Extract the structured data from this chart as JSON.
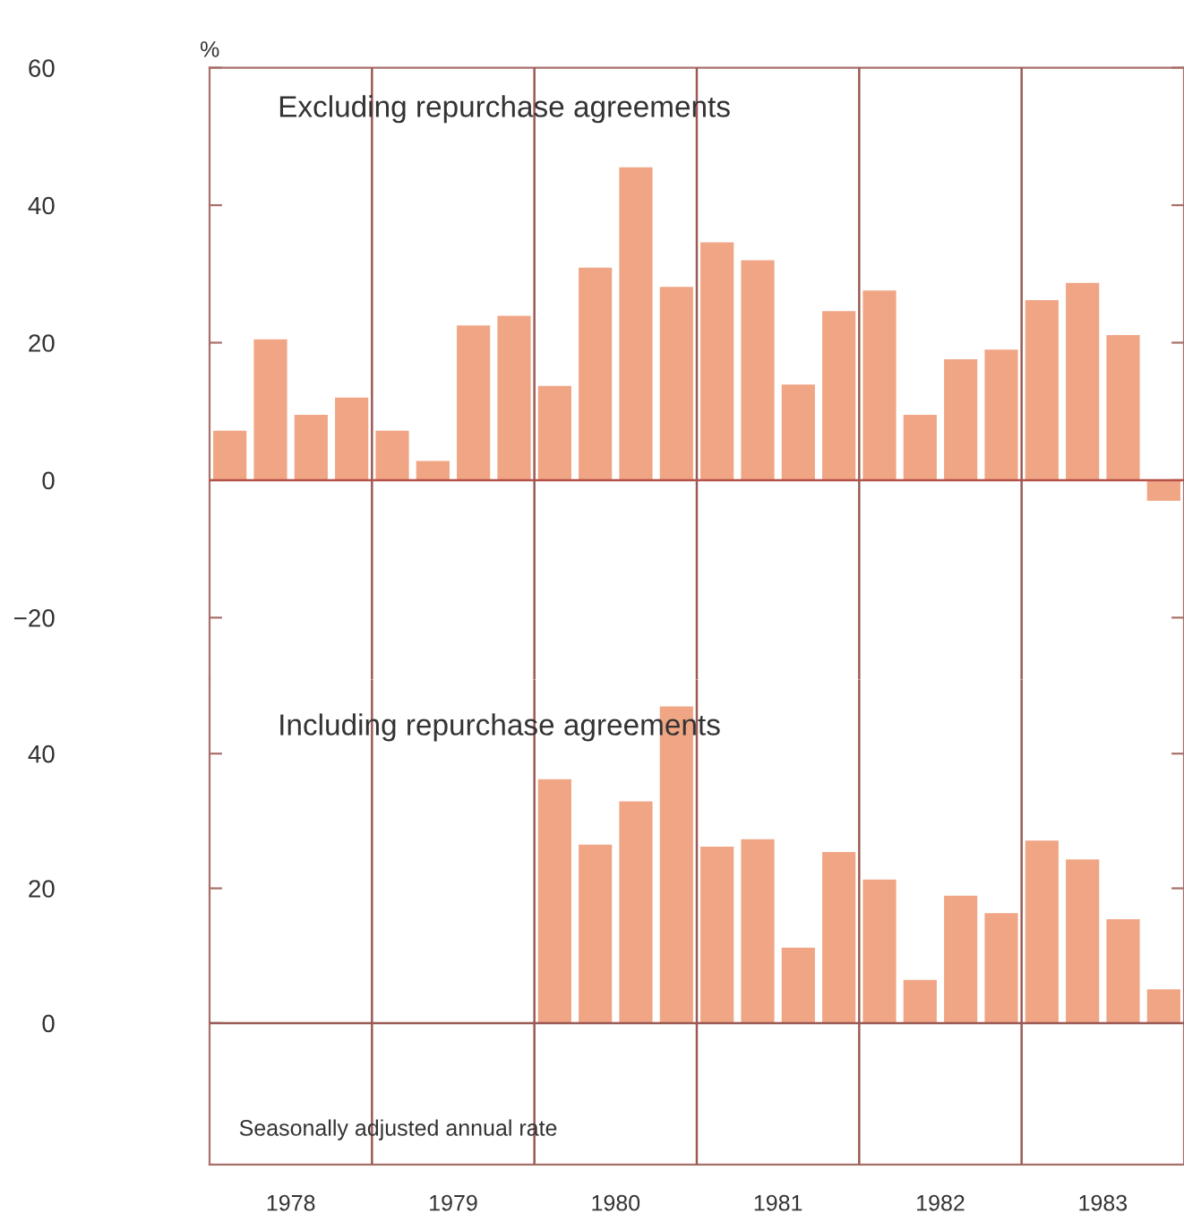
{
  "chart_data": [
    {
      "type": "bar",
      "ylabel": "%",
      "annotations": [
        "Excluding repurchase agreements"
      ],
      "x": [
        1978.125,
        1978.375,
        1978.625,
        1978.875,
        1979.125,
        1979.375,
        1979.625,
        1979.875,
        1980.125,
        1980.375,
        1980.625,
        1980.875,
        1981.125,
        1981.375,
        1981.625,
        1981.875,
        1982.125,
        1982.375,
        1982.625,
        1982.875,
        1983.125,
        1983.375,
        1983.625,
        1983.875
      ],
      "values": [
        7.2,
        20.5,
        9.5,
        12,
        7.2,
        2.8,
        22.5,
        23.9,
        13.7,
        30.9,
        45.5,
        28.1,
        34.6,
        32,
        13.9,
        24.6,
        27.6,
        9.5,
        17.6,
        19,
        26.2,
        28.7,
        21.1,
        -3
      ],
      "color": "#f0a584",
      "xlim": [
        1978,
        1984
      ],
      "ylim": [
        -29,
        60
      ],
      "yticks": [
        60,
        40,
        20,
        0,
        {
          "value": -20,
          "label": "−20"
        }
      ],
      "tick_labels": "y",
      "ref_lines": [
        {
          "axis": "y",
          "value": 0,
          "color": "#b5524a"
        },
        {
          "axis": "x",
          "value": 1979,
          "color": "#9a5a55"
        },
        {
          "axis": "x",
          "value": 1980,
          "color": "#9a5a55"
        },
        {
          "axis": "x",
          "value": 1981,
          "color": "#9a5a55"
        },
        {
          "axis": "x",
          "value": 1982,
          "color": "#9a5a55"
        },
        {
          "axis": "x",
          "value": 1983,
          "color": "#9a5a55"
        }
      ]
    },
    {
      "type": "bar",
      "annotations": [
        "Including repurchase agreements",
        "Seasonally adjusted annual rate"
      ],
      "x": [
        1980.125,
        1980.375,
        1980.625,
        1980.875,
        1981.125,
        1981.375,
        1981.625,
        1981.875,
        1982.125,
        1982.375,
        1982.625,
        1982.875,
        1983.125,
        1983.375,
        1983.625,
        1983.875
      ],
      "values": [
        36.2,
        26.5,
        32.9,
        47,
        26.2,
        27.3,
        11.2,
        25.4,
        21.3,
        6.4,
        18.9,
        16.3,
        27.1,
        24.3,
        15.4,
        5
      ],
      "color": "#f0a584",
      "xlim": [
        1978,
        1984
      ],
      "xticks": [
        {
          "value": 1978.5,
          "label": "1978"
        },
        {
          "value": 1979.5,
          "label": "1979"
        },
        {
          "value": 1980.5,
          "label": "1980"
        },
        {
          "value": 1981.5,
          "label": "1981"
        },
        {
          "value": 1982.5,
          "label": "1982"
        },
        {
          "value": 1983.5,
          "label": "1983"
        }
      ],
      "ylim": [
        -21,
        51
      ],
      "yticks": [
        40,
        20,
        0
      ],
      "ref_lines": [
        {
          "axis": "y",
          "value": 0,
          "color": "#9a5a55"
        },
        {
          "axis": "x",
          "value": 1979,
          "color": "#9a5a55"
        },
        {
          "axis": "x",
          "value": 1980,
          "color": "#9a5a55"
        },
        {
          "axis": "x",
          "value": 1981,
          "color": "#9a5a55"
        },
        {
          "axis": "x",
          "value": 1982,
          "color": "#9a5a55"
        },
        {
          "axis": "x",
          "value": 1983,
          "color": "#9a5a55"
        }
      ]
    }
  ]
}
